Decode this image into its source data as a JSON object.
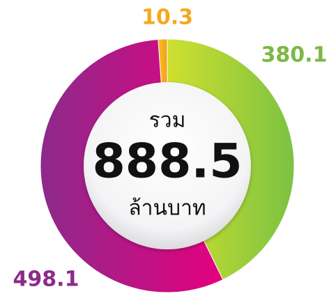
{
  "chart_data": {
    "type": "pie",
    "donut": true,
    "center_label": "รวม",
    "total": 888.5,
    "unit": "ล้านบาท",
    "values": [
      10.3,
      380.1,
      498.1
    ],
    "colors": [
      [
        "#f9c11a",
        "#f29f1f"
      ],
      [
        "#cfe02f",
        "#7cc242"
      ],
      [
        "#8c2a8c",
        "#e6007e"
      ]
    ],
    "label_colors": [
      "#f5a81f",
      "#7cb844",
      "#8e2a8c"
    ]
  }
}
